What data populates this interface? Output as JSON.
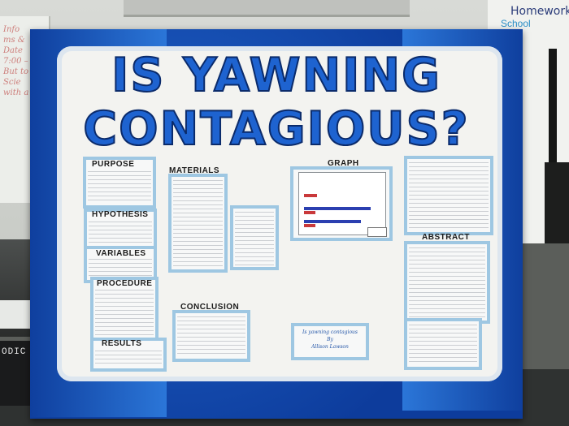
{
  "scene": {
    "title_line1": "IS YAWNING",
    "title_line2": "CONTAGIOUS?",
    "homework_sign": "Homework",
    "schedule_text": "School",
    "book_spine_text": "ODIC TA"
  },
  "sections": {
    "purpose": "PURPOSE",
    "hypothesis": "HYPOTHESIS",
    "variables": "VARIABLES",
    "procedure": "PROCEDURE",
    "results": "RESULTS",
    "materials": "MATERIALS",
    "conclusion": "CONCLUSION",
    "graph": "GRAPH",
    "abstract": "ABSTRACT"
  },
  "credit": {
    "line1": "Is yawning contagious",
    "line2": "By",
    "line3": "Allison Lawson"
  },
  "colors": {
    "board_blue": "#1e63d0",
    "title_outline": "#0b2b6b",
    "card_border": "#9ec7e2",
    "bar_red": "#c9393b",
    "bar_blue": "#2b3fb0"
  }
}
